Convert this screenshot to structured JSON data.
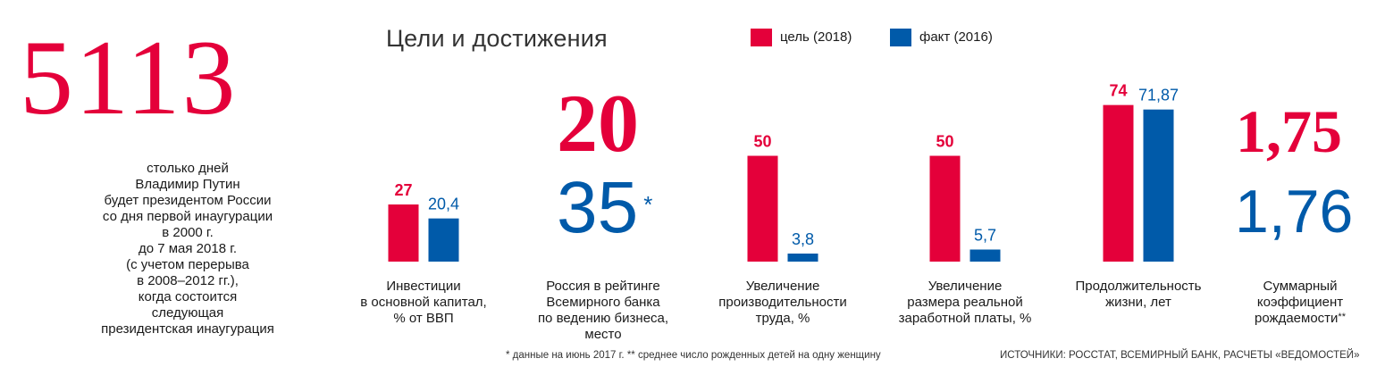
{
  "headline": {
    "number": "5113",
    "caption_lines": [
      "столько дней",
      "Владимир Путин",
      "будет президентом России",
      "со дня первой инаугурации",
      "в 2000 г.",
      "до 7 мая 2018 г.",
      "(с учетом перерыва",
      "в 2008–2012 гг.),",
      "когда состоится",
      "следующая",
      "президентская инаугурация"
    ]
  },
  "colors": {
    "target": "#e4003a",
    "actual": "#005aa9",
    "text": "#1a1a1a"
  },
  "chart_data": {
    "type": "bar",
    "title": "Цели и достижения",
    "legend": {
      "placement": "top",
      "entries": [
        "цель (2018)",
        "факт (2016)"
      ]
    },
    "series": [
      {
        "name": "цель (2018)",
        "values": [
          27,
          20,
          50,
          50,
          74,
          1.75
        ]
      },
      {
        "name": "факт (2016)",
        "values": [
          20.4,
          35,
          3.8,
          5.7,
          71.87,
          1.76
        ]
      }
    ],
    "categories": [
      {
        "label_lines": [
          "Инвестиции",
          "в основной капитал,",
          "% от ВВП"
        ],
        "display": "bars",
        "target_label": "27",
        "actual_label": "20,4",
        "target": 27,
        "actual": 20.4
      },
      {
        "label_lines": [
          "Россия в рейтинге",
          "Всемирного банка",
          "по ведению бизнеса,",
          "место"
        ],
        "display": "numbers",
        "target_label": "20",
        "actual_label": "35",
        "actual_mark": "*",
        "target": 20,
        "actual": 35
      },
      {
        "label_lines": [
          "Увеличение",
          "производительности",
          "труда, %"
        ],
        "display": "bars",
        "target_label": "50",
        "actual_label": "3,8",
        "target": 50,
        "actual": 3.8
      },
      {
        "label_lines": [
          "Увеличение",
          "размера реальной",
          "заработной платы, %"
        ],
        "display": "bars",
        "target_label": "50",
        "actual_label": "5,7",
        "target": 50,
        "actual": 5.7
      },
      {
        "label_lines": [
          "Продолжительность",
          "жизни, лет"
        ],
        "display": "bars",
        "target_label": "74",
        "actual_label": "71,87",
        "target": 74,
        "actual": 71.87
      },
      {
        "label_lines": [
          "Суммарный",
          "коэффициент",
          "рождаемости"
        ],
        "label_mark": "**",
        "display": "numbers",
        "target_label": "1,75",
        "actual_label": "1,76",
        "target": 1.75,
        "actual": 1.76
      }
    ]
  },
  "footnotes": {
    "left": "* данные на июнь 2017 г.  ** среднее число рожденных детей на одну женщину",
    "sources": "ИСТОЧНИКИ: РОССТАТ, ВСЕМИРНЫЙ БАНК, РАСЧЕТЫ «ВЕДОМОСТЕЙ»"
  }
}
